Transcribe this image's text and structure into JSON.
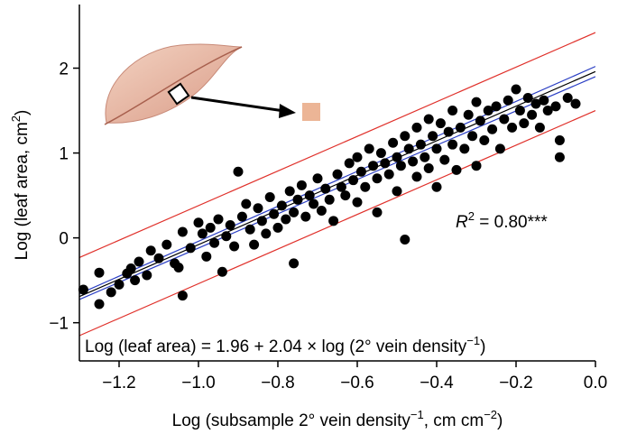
{
  "chart_data": {
    "type": "scatter",
    "xlabel": [
      "Log (subsample 2° vein density",
      "−1",
      ", cm cm",
      "−2",
      ")"
    ],
    "ylabel": [
      "Log (leaf area, cm",
      "2",
      ")"
    ],
    "xlim": [
      -1.3,
      0.0
    ],
    "ylim": [
      -1.45,
      2.75
    ],
    "xticks": [
      {
        "value": -1.2,
        "label": "−1.2"
      },
      {
        "value": -1.0,
        "label": "−1.0"
      },
      {
        "value": -0.8,
        "label": "−0.8"
      },
      {
        "value": -0.6,
        "label": "−0.6"
      },
      {
        "value": -0.4,
        "label": "−0.4"
      },
      {
        "value": -0.2,
        "label": "−0.2"
      },
      {
        "value": 0.0,
        "label": "0.0"
      }
    ],
    "yticks": [
      {
        "value": -1,
        "label": "−1"
      },
      0,
      1,
      2
    ],
    "color": "#000000",
    "x": [
      -1.29,
      -1.25,
      -1.25,
      -1.22,
      -1.2,
      -1.18,
      -1.17,
      -1.16,
      -1.15,
      -1.13,
      -1.12,
      -1.1,
      -1.08,
      -1.06,
      -1.05,
      -1.04,
      -1.04,
      -1.02,
      -1.0,
      -0.99,
      -0.98,
      -0.97,
      -0.96,
      -0.95,
      -0.94,
      -0.93,
      -0.92,
      -0.91,
      -0.9,
      -0.89,
      -0.88,
      -0.87,
      -0.86,
      -0.85,
      -0.84,
      -0.83,
      -0.82,
      -0.81,
      -0.8,
      -0.79,
      -0.78,
      -0.77,
      -0.76,
      -0.76,
      -0.75,
      -0.74,
      -0.73,
      -0.72,
      -0.71,
      -0.7,
      -0.69,
      -0.68,
      -0.67,
      -0.66,
      -0.65,
      -0.64,
      -0.63,
      -0.62,
      -0.61,
      -0.6,
      -0.6,
      -0.59,
      -0.58,
      -0.57,
      -0.56,
      -0.55,
      -0.55,
      -0.54,
      -0.53,
      -0.52,
      -0.51,
      -0.5,
      -0.5,
      -0.49,
      -0.48,
      -0.48,
      -0.47,
      -0.46,
      -0.45,
      -0.45,
      -0.44,
      -0.43,
      -0.42,
      -0.42,
      -0.41,
      -0.4,
      -0.4,
      -0.39,
      -0.38,
      -0.37,
      -0.36,
      -0.36,
      -0.35,
      -0.34,
      -0.33,
      -0.32,
      -0.31,
      -0.3,
      -0.3,
      -0.29,
      -0.28,
      -0.27,
      -0.26,
      -0.25,
      -0.24,
      -0.23,
      -0.22,
      -0.21,
      -0.2,
      -0.19,
      -0.18,
      -0.17,
      -0.16,
      -0.15,
      -0.14,
      -0.13,
      -0.12,
      -0.1,
      -0.09,
      -0.09,
      -0.07,
      -0.05
    ],
    "y": [
      -0.61,
      -0.78,
      -0.41,
      -0.64,
      -0.55,
      -0.42,
      -0.36,
      -0.5,
      -0.28,
      -0.44,
      -0.15,
      -0.24,
      -0.08,
      -0.3,
      -0.35,
      -0.68,
      0.07,
      -0.12,
      0.18,
      0.05,
      -0.22,
      0.12,
      -0.06,
      0.22,
      -0.4,
      0.02,
      0.15,
      -0.1,
      0.78,
      0.25,
      0.4,
      0.1,
      -0.08,
      0.35,
      0.2,
      0.05,
      0.48,
      0.28,
      0.12,
      0.38,
      0.22,
      0.55,
      0.3,
      -0.3,
      0.45,
      0.62,
      0.25,
      0.5,
      0.4,
      0.7,
      0.32,
      0.58,
      0.45,
      0.2,
      0.75,
      0.6,
      0.5,
      0.88,
      0.68,
      0.42,
      0.95,
      0.78,
      0.6,
      1.05,
      0.85,
      0.7,
      0.3,
      1.0,
      0.88,
      0.75,
      1.12,
      0.95,
      0.55,
      0.85,
      1.2,
      -0.02,
      1.05,
      0.9,
      1.3,
      0.72,
      1.1,
      0.95,
      1.4,
      0.82,
      1.2,
      1.05,
      0.6,
      1.35,
      0.92,
      1.25,
      1.5,
      1.1,
      0.8,
      1.3,
      1.05,
      1.45,
      1.2,
      0.85,
      1.6,
      1.38,
      1.15,
      1.5,
      1.28,
      1.55,
      1.05,
      1.4,
      1.62,
      1.3,
      1.75,
      1.5,
      1.35,
      1.65,
      1.45,
      1.58,
      1.3,
      1.62,
      1.5,
      1.55,
      1.15,
      0.95,
      1.65,
      1.58
    ],
    "fit_lines": [
      {
        "intercept": 2.42,
        "slope": 2.04,
        "color": "#e0312b"
      },
      {
        "intercept": 1.5,
        "slope": 2.04,
        "color": "#e0312b"
      },
      {
        "intercept": 2.02,
        "slope": 2.06,
        "color": "#2b3fc4"
      },
      {
        "intercept": 1.9,
        "slope": 2.02,
        "color": "#2b3fc4"
      },
      {
        "intercept": 1.96,
        "slope": 2.04,
        "color": "#000000"
      }
    ],
    "r2_text": [
      "R",
      "2",
      " = 0.80***"
    ],
    "equation": [
      "Log (leaf area) = 1.96 + 2.04 × log (2° vein density",
      "−1",
      ")"
    ]
  }
}
